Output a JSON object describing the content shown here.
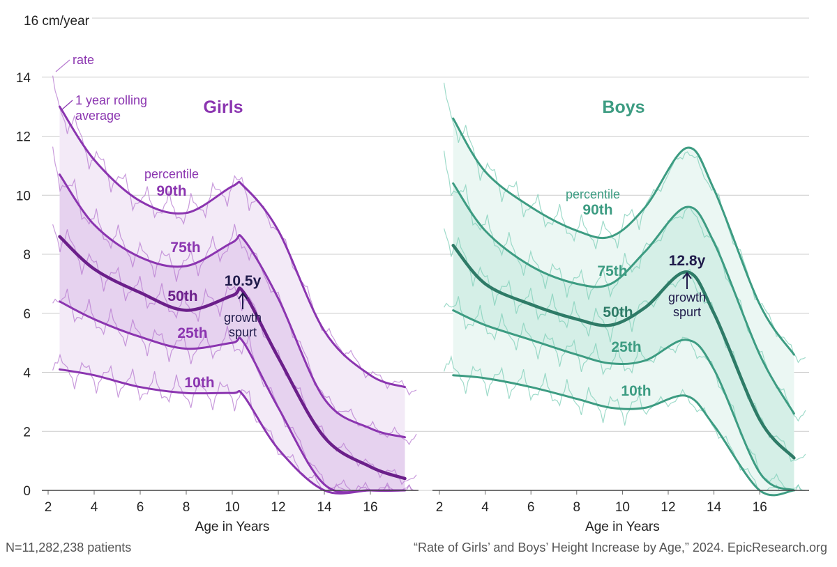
{
  "colors": {
    "girls_dark": "#6b1f8a",
    "girls_mid": "#8b35b0",
    "girls_light": "#b77ad0",
    "girls_band_outer": "#f3eaf7",
    "girls_band_inner": "#e6d2ef",
    "boys_dark": "#2e7b67",
    "boys_mid": "#3d9c82",
    "boys_light": "#7fcfb8",
    "boys_band_outer": "#ebf7f3",
    "boys_band_inner": "#d5efe7",
    "annotation": "#1f1a4a",
    "grid": "#cccccc"
  },
  "labels": {
    "y_unit_label": "16 cm/year",
    "rate": "rate",
    "rolling_line1": "1 year rolling",
    "rolling_line2": "average",
    "percentile": "percentile",
    "footer_left": "N=11,282,238 patients",
    "footer_right": "“Rate of Girls’ and Boys’ Height Increase by Age,” 2024. EpicResearch.org"
  },
  "chart_data": [
    {
      "type": "line",
      "title": "Girls",
      "xlabel": "Age in Years",
      "ylabel": "cm/year",
      "xlim": [
        2,
        18
      ],
      "ylim": [
        0,
        16
      ],
      "x_ticks": [
        2,
        4,
        6,
        8,
        10,
        12,
        14,
        16
      ],
      "y_ticks": [
        0,
        2,
        4,
        6,
        8,
        10,
        12,
        14
      ],
      "x": [
        2.5,
        4,
        6,
        8,
        10,
        10.5,
        12,
        14,
        16,
        17.5
      ],
      "series": [
        {
          "name": "90th",
          "values": [
            13.0,
            11.2,
            9.8,
            9.4,
            10.3,
            10.3,
            8.8,
            5.4,
            3.9,
            3.5
          ]
        },
        {
          "name": "75th",
          "values": [
            10.7,
            9.0,
            7.9,
            7.6,
            8.4,
            8.5,
            6.5,
            3.1,
            2.1,
            1.8
          ]
        },
        {
          "name": "50th",
          "values": [
            8.6,
            7.5,
            6.7,
            6.1,
            6.6,
            6.7,
            4.5,
            1.8,
            0.8,
            0.4
          ]
        },
        {
          "name": "25th",
          "values": [
            6.4,
            5.8,
            5.2,
            4.8,
            5.0,
            5.0,
            2.8,
            0.2,
            0.0,
            0.0
          ]
        },
        {
          "name": "10th",
          "values": [
            4.1,
            3.9,
            3.5,
            3.3,
            3.3,
            3.2,
            1.4,
            0.0,
            0.0,
            0.0
          ]
        }
      ],
      "growth_spurt_label": "10.5y",
      "growth_spurt_x": 10.5,
      "annotation_line1": "growth",
      "annotation_line2": "spurt"
    },
    {
      "type": "line",
      "title": "Boys",
      "xlabel": "Age in Years",
      "ylabel": "cm/year",
      "xlim": [
        2,
        18
      ],
      "ylim": [
        0,
        16
      ],
      "x_ticks": [
        2,
        4,
        6,
        8,
        10,
        12,
        14,
        16
      ],
      "y_ticks": [
        0,
        2,
        4,
        6,
        8,
        10,
        12,
        14
      ],
      "x": [
        2.6,
        4,
        6,
        8,
        9.5,
        11,
        12.8,
        14,
        16,
        17.5
      ],
      "series": [
        {
          "name": "90th",
          "values": [
            12.6,
            10.8,
            9.6,
            8.8,
            8.6,
            9.6,
            11.6,
            10.2,
            6.3,
            4.6
          ]
        },
        {
          "name": "75th",
          "values": [
            10.4,
            8.8,
            7.6,
            7.0,
            7.0,
            8.1,
            9.6,
            8.4,
            4.6,
            2.6
          ]
        },
        {
          "name": "50th",
          "values": [
            8.3,
            7.0,
            6.3,
            5.8,
            5.6,
            6.2,
            7.4,
            6.0,
            2.4,
            1.1
          ]
        },
        {
          "name": "25th",
          "values": [
            6.1,
            5.6,
            5.1,
            4.6,
            4.3,
            4.4,
            5.1,
            4.1,
            0.6,
            0.0
          ]
        },
        {
          "name": "10th",
          "values": [
            3.9,
            3.8,
            3.5,
            3.1,
            2.8,
            2.8,
            3.2,
            2.2,
            0.0,
            0.0
          ]
        }
      ],
      "growth_spurt_label": "12.8y",
      "growth_spurt_x": 12.8,
      "annotation_line1": "growth",
      "annotation_line2": "spurt"
    }
  ]
}
